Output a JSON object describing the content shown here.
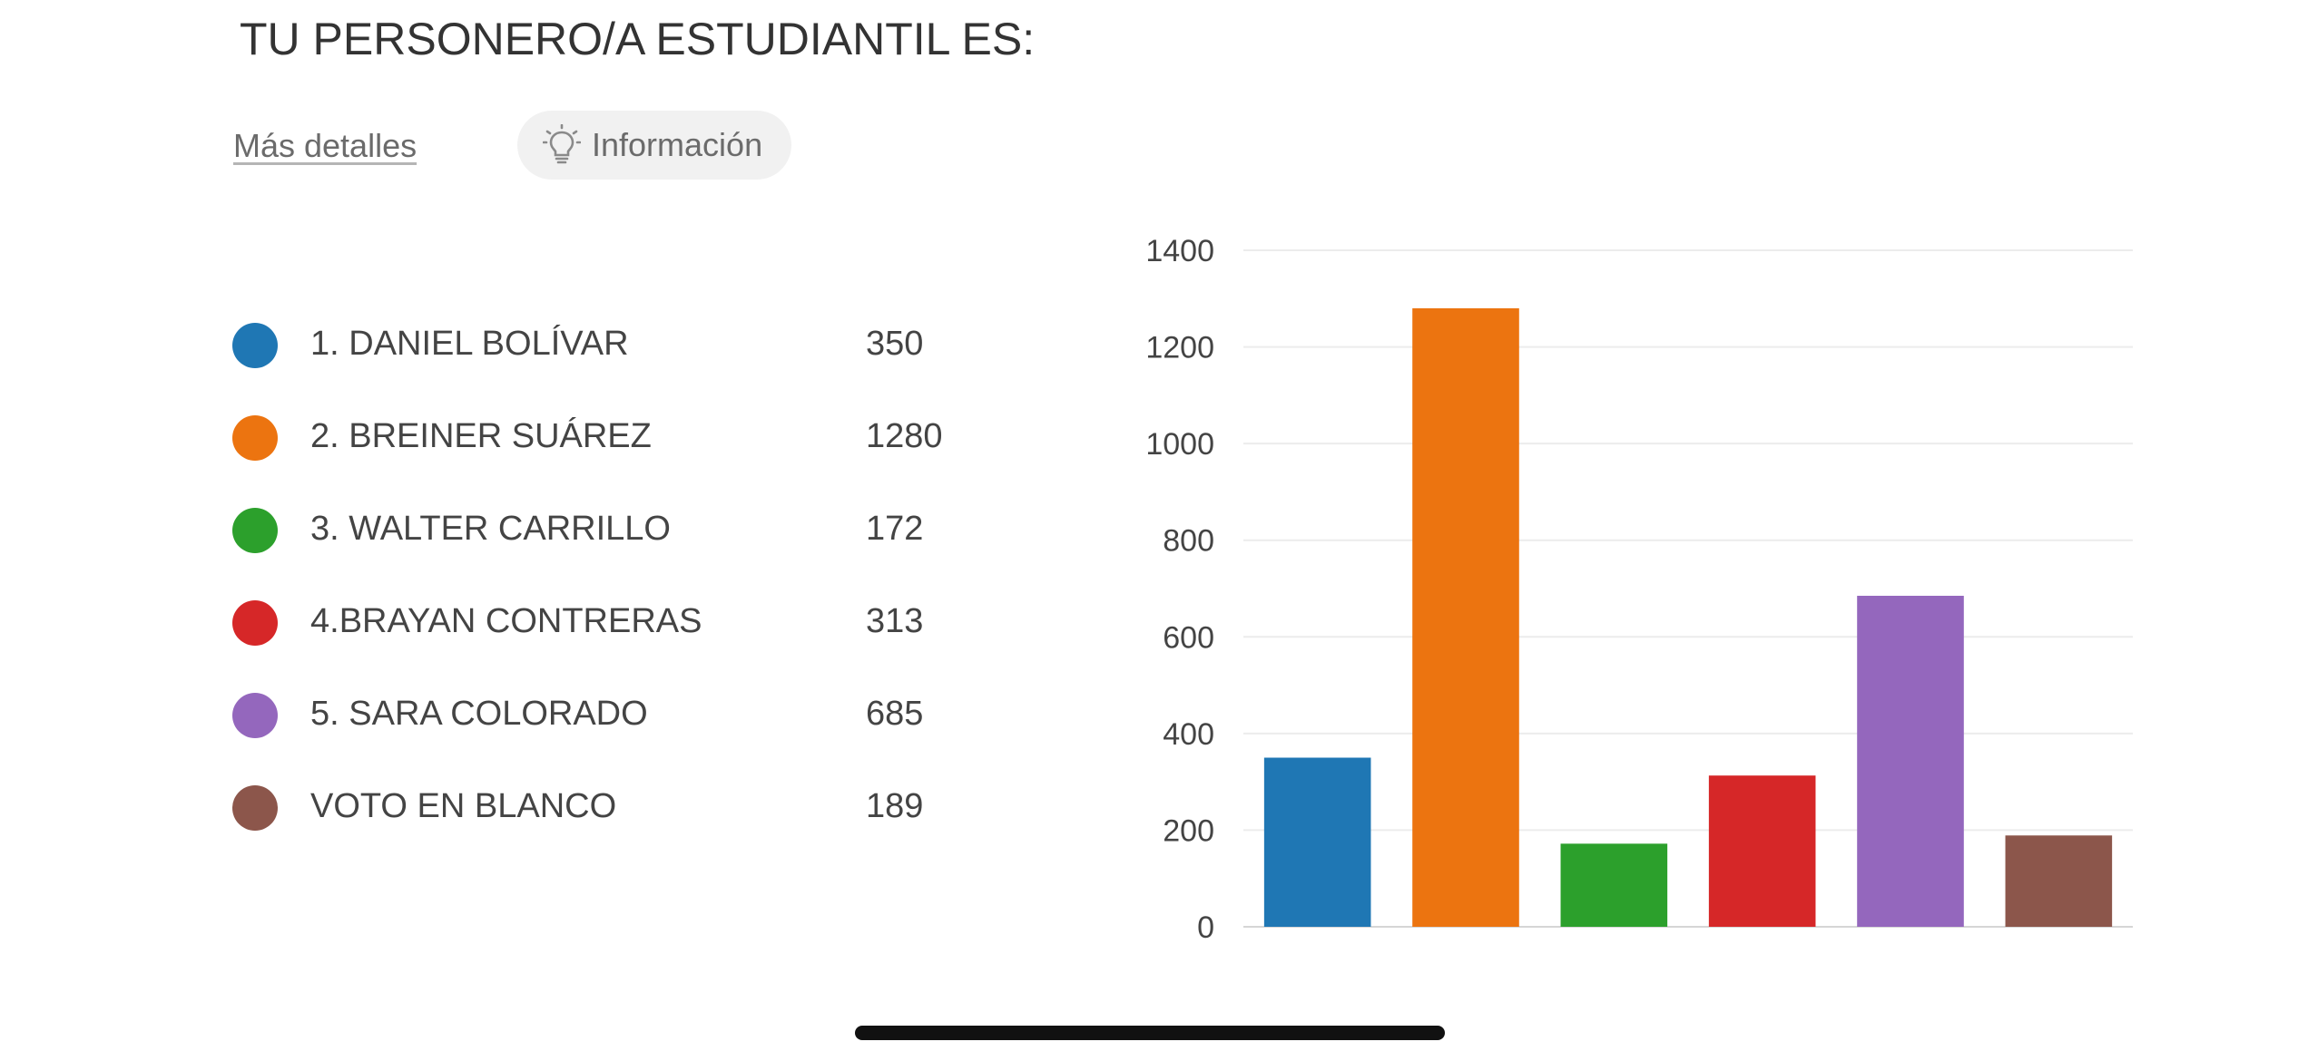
{
  "header": {
    "title": "TU PERSONERO/A ESTUDIANTIL ES:",
    "details_label": "Más detalles",
    "info_label": "Información",
    "info_icon": "lightbulb-icon"
  },
  "legend": {
    "items": [
      {
        "label": "1. DANIEL BOLÍVAR",
        "value": "350",
        "color": "#1f77b4"
      },
      {
        "label": "2. BREINER SUÁREZ",
        "value": "1280",
        "color": "#ec7410"
      },
      {
        "label": "3. WALTER CARRILLO",
        "value": "172",
        "color": "#2ca02c"
      },
      {
        "label": "4.BRAYAN CONTRERAS",
        "value": "313",
        "color": "#d62728"
      },
      {
        "label": "5. SARA COLORADO",
        "value": "685",
        "color": "#9467bd"
      },
      {
        "label": "VOTO EN BLANCO",
        "value": "189",
        "color": "#8c564b"
      }
    ]
  },
  "chart_data": {
    "type": "bar",
    "categories": [
      "1. DANIEL BOLÍVAR",
      "2. BREINER SUÁREZ",
      "3. WALTER CARRILLO",
      "4.BRAYAN CONTRERAS",
      "5. SARA COLORADO",
      "VOTO EN BLANCO"
    ],
    "values": [
      350,
      1280,
      172,
      313,
      685,
      189
    ],
    "colors": [
      "#1f77b4",
      "#ec7410",
      "#2ca02c",
      "#d62728",
      "#9467bd",
      "#8c564b"
    ],
    "title": "",
    "xlabel": "",
    "ylabel": "",
    "ylim": [
      0,
      1400
    ],
    "yticks": [
      0,
      200,
      400,
      600,
      800,
      1000,
      1200,
      1400
    ],
    "grid": true,
    "legend_position": "left"
  }
}
